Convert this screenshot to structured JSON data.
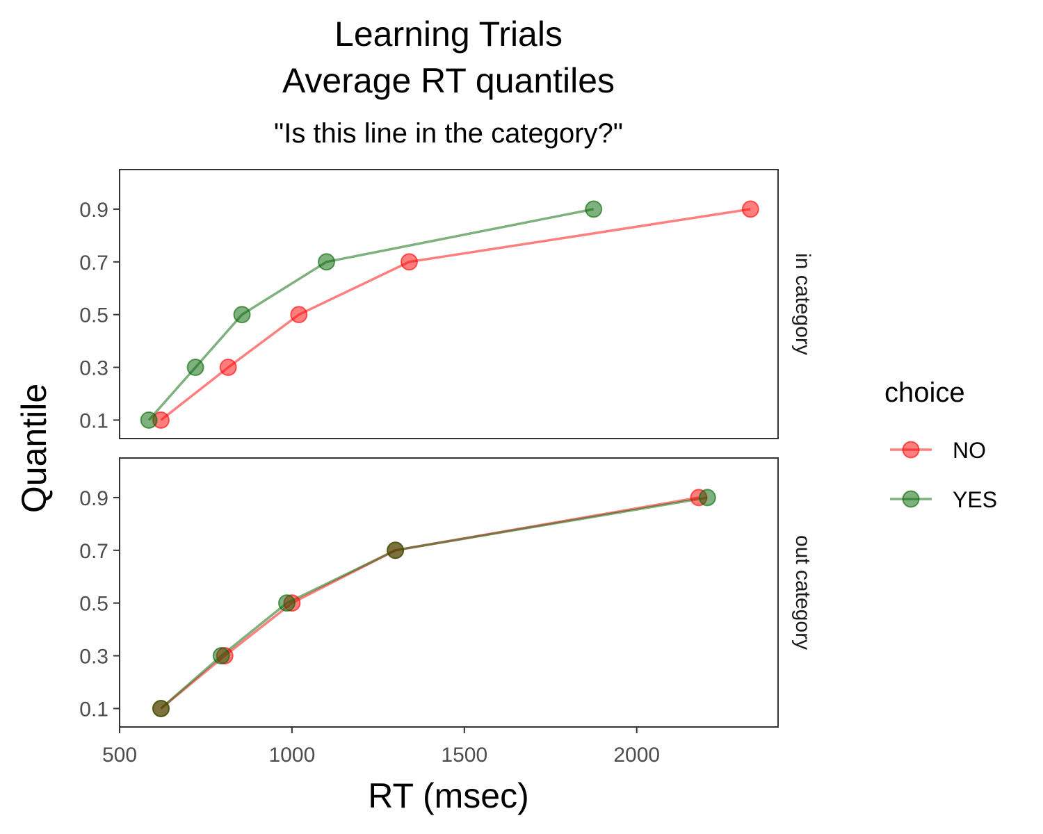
{
  "chart_data": {
    "type": "line",
    "title_lines": [
      "Learning Trials",
      "Average RT quantiles"
    ],
    "subtitle": "\"Is this line in the category?\"",
    "xlabel": "RT (msec)",
    "ylabel": "Quantile",
    "xlim": [
      500,
      2410
    ],
    "ylim": [
      0.03,
      1.05
    ],
    "xticks": [
      500,
      1000,
      1500,
      2000
    ],
    "yticks": [
      0.1,
      0.3,
      0.5,
      0.7,
      0.9
    ],
    "grid": false,
    "legend": {
      "title": "choice",
      "position": "right",
      "entries": [
        {
          "label": "NO",
          "color": "#ff0000"
        },
        {
          "label": "YES",
          "color": "#006400"
        }
      ]
    },
    "panels": [
      {
        "label": "in category",
        "series": [
          {
            "key": "NO",
            "color": "#ff0000",
            "x": [
              620,
              815,
              1020,
              1340,
              2330
            ],
            "y": [
              0.1,
              0.3,
              0.5,
              0.7,
              0.9
            ]
          },
          {
            "key": "YES",
            "color": "#006400",
            "x": [
              585,
              720,
              855,
              1100,
              1875
            ],
            "y": [
              0.1,
              0.3,
              0.5,
              0.7,
              0.9
            ]
          }
        ]
      },
      {
        "label": "out category",
        "series": [
          {
            "key": "NO",
            "color": "#ff0000",
            "x": [
              620,
              805,
              1000,
              1300,
              2180
            ],
            "y": [
              0.1,
              0.3,
              0.5,
              0.7,
              0.9
            ]
          },
          {
            "key": "YES",
            "color": "#006400",
            "x": [
              620,
              795,
              985,
              1300,
              2205
            ],
            "y": [
              0.1,
              0.3,
              0.5,
              0.7,
              0.9
            ]
          }
        ]
      }
    ]
  }
}
